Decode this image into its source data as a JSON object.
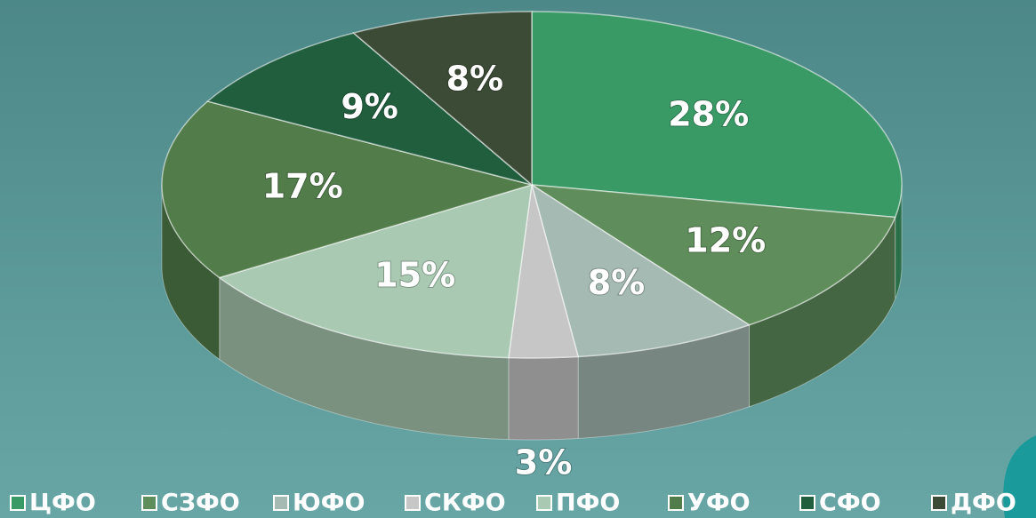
{
  "chart_data": {
    "type": "pie",
    "categories": [
      "ЦФО",
      "СЗФО",
      "ЮФО",
      "СКФО",
      "ПФО",
      "УФО",
      "СФО",
      "ДФО"
    ],
    "values": [
      28,
      12,
      8,
      3,
      15,
      17,
      9,
      8
    ],
    "value_labels": [
      "28%",
      "12%",
      "8%",
      "3%",
      "15%",
      "17%",
      "9%",
      "8%"
    ],
    "colors": [
      "#3a9a66",
      "#5f8d5b",
      "#a5bab3",
      "#c6c6c6",
      "#a9c9b2",
      "#527d4b",
      "#205e3e",
      "#3b4b35"
    ],
    "legend": "bottom"
  }
}
